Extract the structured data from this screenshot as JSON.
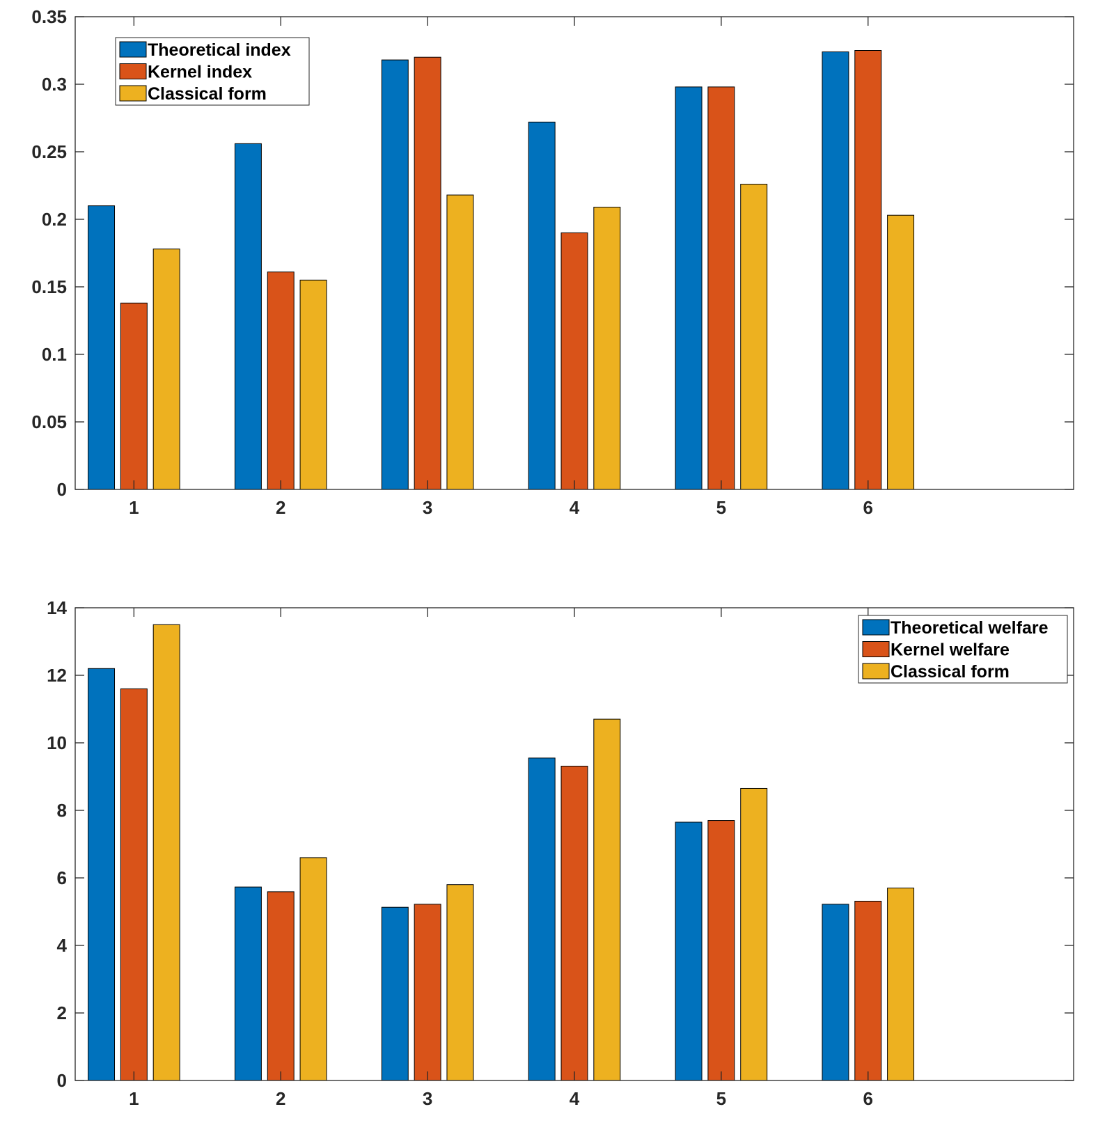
{
  "chart_data": [
    {
      "type": "bar",
      "categories": [
        "1",
        "2",
        "3",
        "4",
        "5",
        "6"
      ],
      "series": [
        {
          "name": "Theoretical index",
          "color": "#0072BD",
          "values": [
            0.21,
            0.256,
            0.318,
            0.272,
            0.298,
            0.324
          ]
        },
        {
          "name": "Kernel index",
          "color": "#D95319",
          "values": [
            0.138,
            0.161,
            0.32,
            0.19,
            0.298,
            0.325
          ]
        },
        {
          "name": "Classical form",
          "color": "#EDB120",
          "values": [
            0.178,
            0.155,
            0.218,
            0.209,
            0.226,
            0.203
          ]
        }
      ],
      "ylim": [
        0,
        0.35
      ],
      "yticks": [
        0,
        0.05,
        0.1,
        0.15,
        0.2,
        0.25,
        0.3,
        0.35
      ],
      "ytick_labels": [
        "0",
        "0.05",
        "0.1",
        "0.15",
        "0.2",
        "0.25",
        "0.3",
        "0.35"
      ],
      "legend_position": "top-left",
      "grid": false,
      "title": "",
      "xlabel": "",
      "ylabel": ""
    },
    {
      "type": "bar",
      "categories": [
        "1",
        "2",
        "3",
        "4",
        "5",
        "6"
      ],
      "series": [
        {
          "name": "Theoretical welfare",
          "color": "#0072BD",
          "values": [
            12.2,
            5.73,
            5.13,
            9.55,
            7.65,
            5.22
          ]
        },
        {
          "name": "Kernel welfare",
          "color": "#D95319",
          "values": [
            11.6,
            5.59,
            5.22,
            9.31,
            7.7,
            5.31
          ]
        },
        {
          "name": "Classical form",
          "color": "#EDB120",
          "values": [
            13.5,
            6.6,
            5.8,
            10.7,
            8.65,
            5.7
          ]
        }
      ],
      "ylim": [
        0,
        14
      ],
      "yticks": [
        0,
        2,
        4,
        6,
        8,
        10,
        12,
        14
      ],
      "ytick_labels": [
        "0",
        "2",
        "4",
        "6",
        "8",
        "10",
        "12",
        "14"
      ],
      "legend_position": "top-right",
      "grid": false,
      "title": "",
      "xlabel": "",
      "ylabel": ""
    }
  ]
}
